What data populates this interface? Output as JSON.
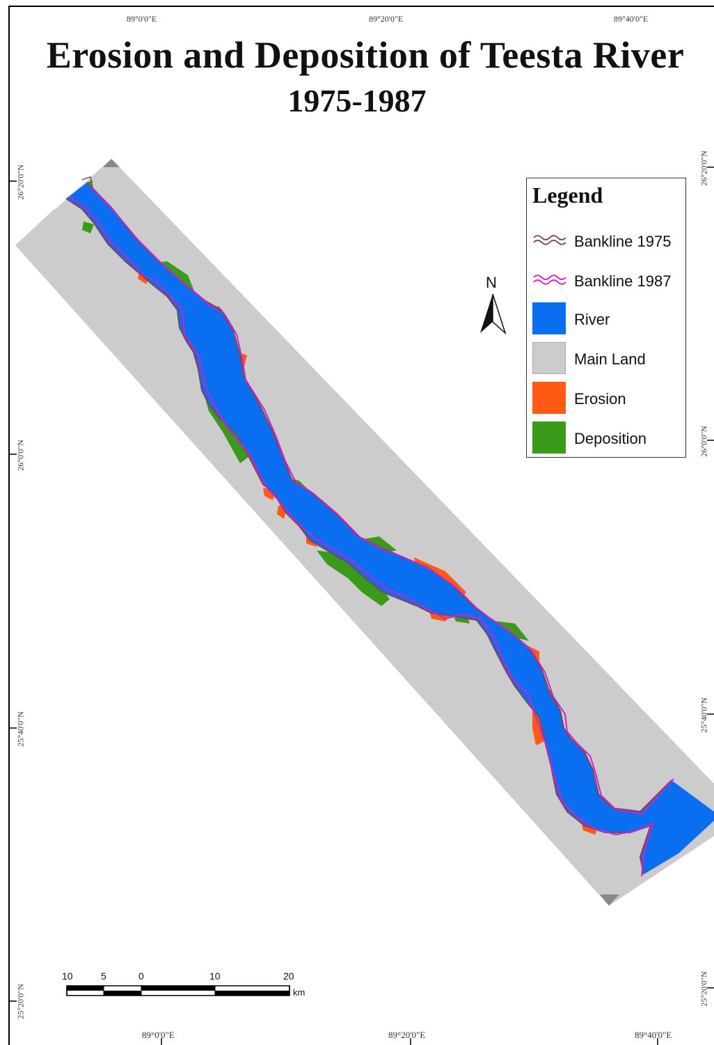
{
  "map": {
    "title": "Erosion and Deposition of Teesta River",
    "subtitle": "1975-1987",
    "colors": {
      "river": "#0a6ef0",
      "main_land": "#cccccc",
      "erosion": "#ff5a14",
      "deposition": "#3a9a1a",
      "bankline_1975": "#7a4a5a",
      "bankline_1987": "#cc22cc"
    }
  },
  "graticule": {
    "top": [
      "89°0'0\"E",
      "89°20'0\"E",
      "89°40'0\"E"
    ],
    "bottom": [
      "89°0'0\"E",
      "89°20'0\"E",
      "89°40'0\"E"
    ],
    "left": [
      "26°20'0\"N",
      "26°0'0\"N",
      "25°40'0\"N",
      "25°20'0\"N"
    ],
    "right": [
      "26°20'0\"N",
      "26°0'0\"N",
      "25°40'0\"N",
      "25°20'0\"N"
    ]
  },
  "legend": {
    "title": "Legend",
    "items": [
      {
        "label": "Bankline 1975",
        "symbol": "wavy-line-icon",
        "color": "#7a4a5a"
      },
      {
        "label": "Bankline 1987",
        "symbol": "wavy-line-icon",
        "color": "#cc22cc"
      },
      {
        "label": "River",
        "symbol": "fill",
        "color": "#0a6ef0"
      },
      {
        "label": "Main Land",
        "symbol": "fill",
        "color": "#cccccc"
      },
      {
        "label": "Erosion",
        "symbol": "fill",
        "color": "#ff5a14"
      },
      {
        "label": "Deposition",
        "symbol": "fill",
        "color": "#3a9a1a"
      }
    ]
  },
  "north_arrow": {
    "label": "N"
  },
  "scale_bar": {
    "ticks": [
      "10",
      "5",
      "0",
      "10",
      "20"
    ],
    "unit": "km"
  }
}
